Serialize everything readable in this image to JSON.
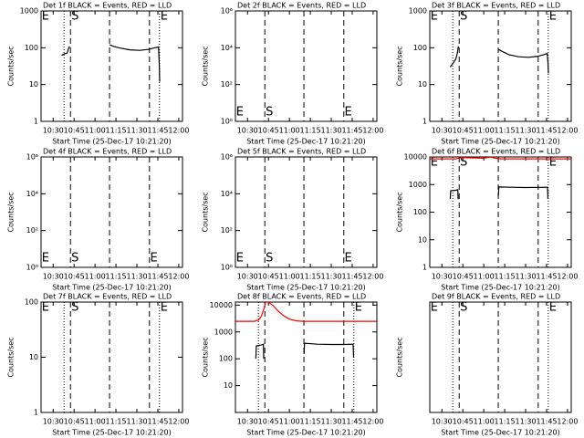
{
  "chart_data": [
    {
      "type": "line",
      "title": "Det 1f BLACK = Events, RED = LLD",
      "ylabel": "Counts/sec",
      "xlabel": "Start Time (25-Dec-17 10:21:20)",
      "log_y": true,
      "xlim": [
        621.33,
        722.67
      ],
      "xticks": [
        {
          "value": 630,
          "label": "10:30"
        },
        {
          "value": 645,
          "label": "10:45"
        },
        {
          "value": 660,
          "label": "11:00"
        },
        {
          "value": 675,
          "label": "11:15"
        },
        {
          "value": 690,
          "label": "11:30"
        },
        {
          "value": 705,
          "label": "11:45"
        },
        {
          "value": 720,
          "label": "12:00"
        }
      ],
      "ylim": [
        1,
        1000
      ],
      "yticks": [
        1,
        10,
        100,
        1000
      ],
      "vlines": [
        {
          "x": 637.8,
          "style": "dotted"
        },
        {
          "x": 642.4,
          "style": "dashed"
        },
        {
          "x": 670.4,
          "style": "dashed"
        },
        {
          "x": 699,
          "style": "dashed"
        },
        {
          "x": 706.2,
          "style": "dotted"
        }
      ],
      "annotation_position": "top",
      "annotations": [
        {
          "text": "E",
          "x": 621.8
        },
        {
          "text": "S",
          "x": 643
        },
        {
          "text": "E",
          "x": 706.8
        }
      ],
      "series": [
        {
          "color": "#000000",
          "x": [
            636,
            638,
            640,
            641,
            641.8,
            null,
            670.5,
            673,
            678,
            685,
            692,
            698,
            703,
            705.5,
            706,
            706.3
          ],
          "values": [
            62,
            68,
            72,
            95,
            110,
            null,
            120,
            110,
            98,
            88,
            85,
            90,
            100,
            105,
            40,
            12
          ]
        }
      ]
    },
    {
      "type": "line",
      "title": "Det 2f BLACK = Events, RED = LLD",
      "ylabel": "Counts/sec",
      "xlabel": "Start Time (25-Dec-17 10:21:20)",
      "log_y": true,
      "xlim": [
        621.33,
        722.67
      ],
      "xticks": [
        {
          "value": 630,
          "label": "10:30"
        },
        {
          "value": 645,
          "label": "10:45"
        },
        {
          "value": 660,
          "label": "11:00"
        },
        {
          "value": 675,
          "label": "11:15"
        },
        {
          "value": 690,
          "label": "11:30"
        },
        {
          "value": 705,
          "label": "11:45"
        },
        {
          "value": 720,
          "label": "12:00"
        }
      ],
      "ylim": [
        1,
        1000000
      ],
      "yticks": [
        {
          "value": 1,
          "label": "10⁰"
        },
        {
          "value": 100,
          "label": "10²"
        },
        {
          "value": 10000,
          "label": "10⁴"
        },
        {
          "value": 1000000,
          "label": "10⁶"
        }
      ],
      "vlines": [
        {
          "x": 642.4,
          "style": "dashed"
        },
        {
          "x": 670.4,
          "style": "dashed"
        },
        {
          "x": 699,
          "style": "dashed"
        }
      ],
      "annotation_position": "bottom",
      "annotations": [
        {
          "text": "E",
          "x": 621.8
        },
        {
          "text": "S",
          "x": 643
        },
        {
          "text": "E",
          "x": 699.5
        }
      ],
      "series": []
    },
    {
      "type": "line",
      "title": "Det 3f BLACK = Events, RED = LLD",
      "ylabel": "Counts/sec",
      "xlabel": "Start Time (25-Dec-17 10:21:20)",
      "log_y": true,
      "xlim": [
        621.33,
        722.67
      ],
      "xticks": [
        {
          "value": 630,
          "label": "10:30"
        },
        {
          "value": 645,
          "label": "10:45"
        },
        {
          "value": 660,
          "label": "11:00"
        },
        {
          "value": 675,
          "label": "11:15"
        },
        {
          "value": 690,
          "label": "11:30"
        },
        {
          "value": 705,
          "label": "11:45"
        },
        {
          "value": 720,
          "label": "12:00"
        }
      ],
      "ylim": [
        1,
        1000
      ],
      "yticks": [
        1,
        10,
        100,
        1000
      ],
      "vlines": [
        {
          "x": 637.8,
          "style": "dotted"
        },
        {
          "x": 642.4,
          "style": "dashed"
        },
        {
          "x": 670.4,
          "style": "dashed"
        },
        {
          "x": 699,
          "style": "dashed"
        },
        {
          "x": 706.2,
          "style": "dotted"
        }
      ],
      "annotation_position": "top",
      "annotations": [
        {
          "text": "E",
          "x": 621.8
        },
        {
          "text": "S",
          "x": 643
        },
        {
          "text": "E",
          "x": 706.8
        }
      ],
      "series": [
        {
          "color": "#000000",
          "x": [
            636,
            638,
            640,
            641,
            641.8,
            null,
            670.5,
            673,
            678,
            685,
            692,
            698,
            703,
            705.5,
            706,
            706.3
          ],
          "values": [
            30,
            38,
            50,
            70,
            110,
            null,
            90,
            80,
            65,
            57,
            55,
            58,
            65,
            70,
            40,
            20
          ]
        }
      ]
    },
    {
      "type": "line",
      "title": "Det 4f BLACK = Events, RED = LLD",
      "ylabel": "Counts/sec",
      "xlabel": "Start Time (25-Dec-17 10:21:20)",
      "log_y": true,
      "xlim": [
        621.33,
        722.67
      ],
      "xticks": [
        {
          "value": 630,
          "label": "10:30"
        },
        {
          "value": 645,
          "label": "10:45"
        },
        {
          "value": 660,
          "label": "11:00"
        },
        {
          "value": 675,
          "label": "11:15"
        },
        {
          "value": 690,
          "label": "11:30"
        },
        {
          "value": 705,
          "label": "11:45"
        },
        {
          "value": 720,
          "label": "12:00"
        }
      ],
      "ylim": [
        1,
        1000000
      ],
      "yticks": [
        {
          "value": 1,
          "label": "10⁰"
        },
        {
          "value": 100,
          "label": "10²"
        },
        {
          "value": 10000,
          "label": "10⁴"
        },
        {
          "value": 1000000,
          "label": "10⁶"
        }
      ],
      "vlines": [
        {
          "x": 642.4,
          "style": "dashed"
        },
        {
          "x": 670.4,
          "style": "dashed"
        },
        {
          "x": 699,
          "style": "dashed"
        }
      ],
      "annotation_position": "bottom",
      "annotations": [
        {
          "text": "E",
          "x": 621.8
        },
        {
          "text": "S",
          "x": 643
        },
        {
          "text": "E",
          "x": 699.5
        }
      ],
      "series": []
    },
    {
      "type": "line",
      "title": "Det 5f BLACK = Events, RED = LLD",
      "ylabel": "Counts/sec",
      "xlabel": "Start Time (25-Dec-17 10:21:20)",
      "log_y": true,
      "xlim": [
        621.33,
        722.67
      ],
      "xticks": [
        {
          "value": 630,
          "label": "10:30"
        },
        {
          "value": 645,
          "label": "10:45"
        },
        {
          "value": 660,
          "label": "11:00"
        },
        {
          "value": 675,
          "label": "11:15"
        },
        {
          "value": 690,
          "label": "11:30"
        },
        {
          "value": 705,
          "label": "11:45"
        },
        {
          "value": 720,
          "label": "12:00"
        }
      ],
      "ylim": [
        1,
        1000000
      ],
      "yticks": [
        {
          "value": 1,
          "label": "10⁰"
        },
        {
          "value": 100,
          "label": "10²"
        },
        {
          "value": 10000,
          "label": "10⁴"
        },
        {
          "value": 1000000,
          "label": "10⁶"
        }
      ],
      "vlines": [
        {
          "x": 642.4,
          "style": "dashed"
        },
        {
          "x": 670.4,
          "style": "dashed"
        },
        {
          "x": 699,
          "style": "dashed"
        }
      ],
      "annotation_position": "bottom",
      "annotations": [
        {
          "text": "E",
          "x": 621.8
        },
        {
          "text": "S",
          "x": 643
        },
        {
          "text": "E",
          "x": 699.5
        }
      ],
      "series": []
    },
    {
      "type": "line",
      "title": "Det 6f BLACK = Events, RED = LLD",
      "ylabel": "Counts/sec",
      "xlabel": "Start Time (25-Dec-17 10:21:20)",
      "log_y": true,
      "xlim": [
        621.33,
        722.67
      ],
      "xticks": [
        {
          "value": 630,
          "label": "10:30"
        },
        {
          "value": 645,
          "label": "10:45"
        },
        {
          "value": 660,
          "label": "11:00"
        },
        {
          "value": 675,
          "label": "11:15"
        },
        {
          "value": 690,
          "label": "11:30"
        },
        {
          "value": 705,
          "label": "11:45"
        },
        {
          "value": 720,
          "label": "12:00"
        }
      ],
      "ylim": [
        1,
        10000
      ],
      "yticks": [
        1,
        10,
        100,
        1000,
        10000
      ],
      "vlines": [
        {
          "x": 637.8,
          "style": "dotted"
        },
        {
          "x": 642.4,
          "style": "dashed"
        },
        {
          "x": 670.4,
          "style": "dashed"
        },
        {
          "x": 699,
          "style": "dashed"
        },
        {
          "x": 706.2,
          "style": "dotted"
        }
      ],
      "annotation_position": "top",
      "annotations": [
        {
          "text": "E",
          "x": 621.8
        },
        {
          "text": "S",
          "x": 643
        },
        {
          "text": "E",
          "x": 706.8
        }
      ],
      "series": [
        {
          "color": "#ff0000",
          "x": [
            621.5,
            640,
            644,
            660,
            665,
            668,
            672,
            700,
            722.5
          ],
          "values": [
            8500,
            8500,
            9500,
            9000,
            10000,
            9000,
            8500,
            8500,
            8500
          ]
        },
        {
          "color": "#000000",
          "x": [
            636,
            636.3,
            640,
            641.4,
            641.6,
            null,
            670.5,
            670.8,
            680,
            690,
            700,
            705.7,
            706
          ],
          "values": [
            300,
            600,
            620,
            650,
            300,
            null,
            400,
            820,
            800,
            780,
            790,
            800,
            300
          ]
        }
      ]
    },
    {
      "type": "line",
      "title": "Det 7f BLACK = Events, RED = LLD",
      "ylabel": "Counts/sec",
      "xlabel": "Start Time (25-Dec-17 10:21:20)",
      "log_y": true,
      "xlim": [
        621.33,
        722.67
      ],
      "xticks": [
        {
          "value": 630,
          "label": "10:30"
        },
        {
          "value": 645,
          "label": "10:45"
        },
        {
          "value": 660,
          "label": "11:00"
        },
        {
          "value": 675,
          "label": "11:15"
        },
        {
          "value": 690,
          "label": "11:30"
        },
        {
          "value": 705,
          "label": "11:45"
        },
        {
          "value": 720,
          "label": "12:00"
        }
      ],
      "ylim": [
        1,
        100
      ],
      "yticks": [
        1,
        10,
        100
      ],
      "vlines": [
        {
          "x": 637.8,
          "style": "dotted"
        },
        {
          "x": 642.4,
          "style": "dashed"
        },
        {
          "x": 670.4,
          "style": "dashed"
        },
        {
          "x": 699,
          "style": "dashed"
        },
        {
          "x": 706.2,
          "style": "dotted"
        }
      ],
      "annotation_position": "top",
      "annotations": [
        {
          "text": "E",
          "x": 621.8
        },
        {
          "text": "S",
          "x": 643
        },
        {
          "text": "E",
          "x": 706.8
        }
      ],
      "series": []
    },
    {
      "type": "line",
      "title": "Det 8f BLACK = Events, RED = LLD",
      "ylabel": "Counts/sec",
      "xlabel": "Start Time (25-Dec-17 10:21:20)",
      "log_y": true,
      "xlim": [
        621.33,
        722.67
      ],
      "xticks": [
        {
          "value": 630,
          "label": "10:30"
        },
        {
          "value": 645,
          "label": "10:45"
        },
        {
          "value": 660,
          "label": "11:00"
        },
        {
          "value": 675,
          "label": "11:15"
        },
        {
          "value": 690,
          "label": "11:30"
        },
        {
          "value": 705,
          "label": "11:45"
        },
        {
          "value": 720,
          "label": "12:00"
        }
      ],
      "ylim": [
        1,
        13000
      ],
      "yticks": [
        10,
        100,
        1000,
        10000
      ],
      "vlines": [
        {
          "x": 637.8,
          "style": "dotted"
        },
        {
          "x": 642.4,
          "style": "dashed"
        },
        {
          "x": 670.4,
          "style": "dashed"
        },
        {
          "x": 699,
          "style": "dashed"
        },
        {
          "x": 706.2,
          "style": "dotted"
        }
      ],
      "annotation_position": "top",
      "annotations": [
        {
          "text": "E",
          "x": 706.8
        }
      ],
      "series": [
        {
          "color": "#ff0000",
          "x": [
            621.5,
            635,
            638,
            640,
            642,
            643,
            645,
            648,
            652,
            656,
            660,
            665,
            670,
            722.5
          ],
          "values": [
            2500,
            2500,
            2800,
            4000,
            8000,
            13000,
            13000,
            10000,
            6000,
            4000,
            3000,
            2600,
            2500,
            2500
          ]
        },
        {
          "color": "#000000",
          "x": [
            636,
            636.3,
            640,
            641.4,
            641.6,
            null,
            670.5,
            670.8,
            680,
            690,
            700,
            705.7,
            706
          ],
          "values": [
            100,
            300,
            330,
            350,
            100,
            null,
            150,
            380,
            350,
            340,
            340,
            350,
            110
          ]
        }
      ]
    },
    {
      "type": "line",
      "title": "Det 9f BLACK = Events, RED = LLD",
      "ylabel": "Counts/sec",
      "xlabel": "Start Time (25-Dec-17 10:21:20)",
      "log_y": true,
      "xlim": [
        621.33,
        722.67
      ],
      "xticks": [
        {
          "value": 630,
          "label": "10:30"
        },
        {
          "value": 645,
          "label": "10:45"
        },
        {
          "value": 660,
          "label": "11:00"
        },
        {
          "value": 675,
          "label": "11:15"
        },
        {
          "value": 690,
          "label": "11:30"
        },
        {
          "value": 705,
          "label": "11:45"
        },
        {
          "value": 720,
          "label": "12:00"
        }
      ],
      "ylim": [
        1,
        100
      ],
      "yticks": [],
      "vlines": [
        {
          "x": 637.8,
          "style": "dotted"
        },
        {
          "x": 642.4,
          "style": "dashed"
        },
        {
          "x": 670.4,
          "style": "dashed"
        },
        {
          "x": 699,
          "style": "dashed"
        },
        {
          "x": 706.2,
          "style": "dotted"
        }
      ],
      "annotation_position": "top",
      "annotations": [
        {
          "text": "E",
          "x": 621.8
        },
        {
          "text": "S",
          "x": 643
        },
        {
          "text": "E",
          "x": 706.8
        }
      ],
      "series": []
    }
  ]
}
